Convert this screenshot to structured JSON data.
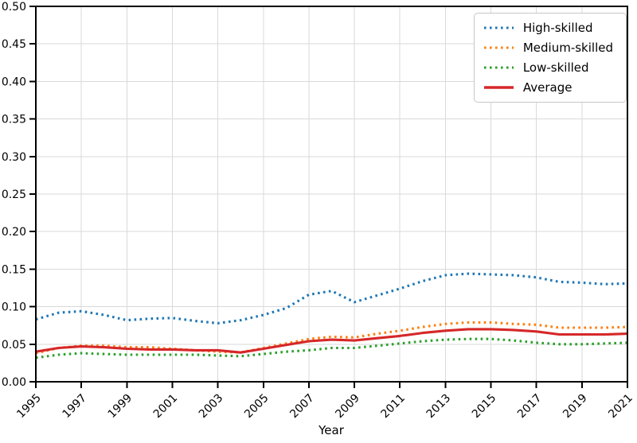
{
  "chart_data": {
    "type": "line",
    "title": "",
    "xlabel": "Year",
    "ylabel": "",
    "xlim": [
      1995,
      2021
    ],
    "ylim": [
      0.0,
      0.5
    ],
    "grid": true,
    "grid_color": "#d9d9d9",
    "legend_position": "upper right",
    "x": [
      1995,
      1996,
      1997,
      1998,
      1999,
      2000,
      2001,
      2002,
      2003,
      2004,
      2005,
      2006,
      2007,
      2008,
      2009,
      2010,
      2011,
      2012,
      2013,
      2014,
      2015,
      2016,
      2017,
      2018,
      2019,
      2020,
      2021
    ],
    "xticks": [
      1995,
      1997,
      1999,
      2001,
      2003,
      2005,
      2007,
      2009,
      2011,
      2013,
      2015,
      2017,
      2019,
      2021
    ],
    "yticks": [
      0.0,
      0.05,
      0.1,
      0.15,
      0.2,
      0.25,
      0.3,
      0.35,
      0.4,
      0.45,
      0.5
    ],
    "ytick_labels": [
      "0.00",
      "0.05",
      "0.10",
      "0.15",
      "0.20",
      "0.25",
      "0.30",
      "0.35",
      "0.40",
      "0.45",
      "0.50"
    ],
    "series": [
      {
        "name": "High-skilled",
        "color": "#1f77b4",
        "style": "dotted",
        "values": [
          0.083,
          0.092,
          0.094,
          0.089,
          0.082,
          0.084,
          0.085,
          0.081,
          0.078,
          0.082,
          0.089,
          0.098,
          0.116,
          0.121,
          0.106,
          0.115,
          0.124,
          0.134,
          0.142,
          0.144,
          0.143,
          0.142,
          0.139,
          0.133,
          0.132,
          0.13,
          0.131
        ]
      },
      {
        "name": "Medium-skilled",
        "color": "#ff7f0e",
        "style": "dotted",
        "values": [
          0.038,
          0.045,
          0.048,
          0.048,
          0.046,
          0.046,
          0.044,
          0.042,
          0.04,
          0.039,
          0.045,
          0.051,
          0.057,
          0.06,
          0.059,
          0.064,
          0.068,
          0.073,
          0.077,
          0.079,
          0.079,
          0.077,
          0.076,
          0.072,
          0.072,
          0.072,
          0.073
        ]
      },
      {
        "name": "Low-skilled",
        "color": "#2ca02c",
        "style": "dotted",
        "values": [
          0.032,
          0.036,
          0.038,
          0.037,
          0.036,
          0.036,
          0.036,
          0.036,
          0.035,
          0.034,
          0.037,
          0.04,
          0.042,
          0.045,
          0.045,
          0.048,
          0.051,
          0.054,
          0.056,
          0.057,
          0.057,
          0.055,
          0.052,
          0.05,
          0.05,
          0.051,
          0.052
        ]
      },
      {
        "name": "Average",
        "color": "#d62728",
        "style": "solid",
        "values": [
          0.04,
          0.045,
          0.047,
          0.046,
          0.044,
          0.043,
          0.043,
          0.042,
          0.042,
          0.039,
          0.044,
          0.049,
          0.054,
          0.056,
          0.055,
          0.058,
          0.061,
          0.065,
          0.068,
          0.07,
          0.07,
          0.069,
          0.067,
          0.063,
          0.063,
          0.063,
          0.064
        ]
      }
    ]
  }
}
